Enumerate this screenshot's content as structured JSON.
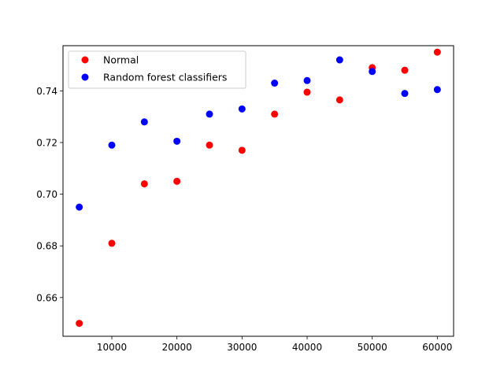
{
  "chart_data": {
    "type": "scatter",
    "title": "",
    "xlabel": "",
    "ylabel": "",
    "xlim": [
      2500,
      62500
    ],
    "ylim": [
      0.645,
      0.7575
    ],
    "xticks": [
      10000,
      20000,
      30000,
      40000,
      50000,
      60000
    ],
    "yticks": [
      0.66,
      0.68,
      0.7,
      0.72,
      0.74
    ],
    "xtick_labels": [
      "10000",
      "20000",
      "30000",
      "40000",
      "50000",
      "60000"
    ],
    "ytick_labels": [
      "0.66",
      "0.68",
      "0.70",
      "0.72",
      "0.74"
    ],
    "grid": false,
    "legend_position": "upper-left",
    "series": [
      {
        "name": "Normal",
        "color": "#ff0000",
        "x": [
          5000,
          10000,
          15000,
          20000,
          25000,
          30000,
          35000,
          40000,
          45000,
          50000,
          55000,
          60000
        ],
        "y": [
          0.65,
          0.681,
          0.704,
          0.705,
          0.719,
          0.717,
          0.731,
          0.7395,
          0.7365,
          0.749,
          0.748,
          0.755
        ]
      },
      {
        "name": "Random forest classifiers",
        "color": "#0000ff",
        "x": [
          5000,
          10000,
          15000,
          20000,
          25000,
          30000,
          35000,
          40000,
          45000,
          50000,
          55000,
          60000
        ],
        "y": [
          0.695,
          0.719,
          0.728,
          0.7205,
          0.731,
          0.733,
          0.743,
          0.744,
          0.752,
          0.7475,
          0.739,
          0.7405
        ]
      }
    ]
  }
}
